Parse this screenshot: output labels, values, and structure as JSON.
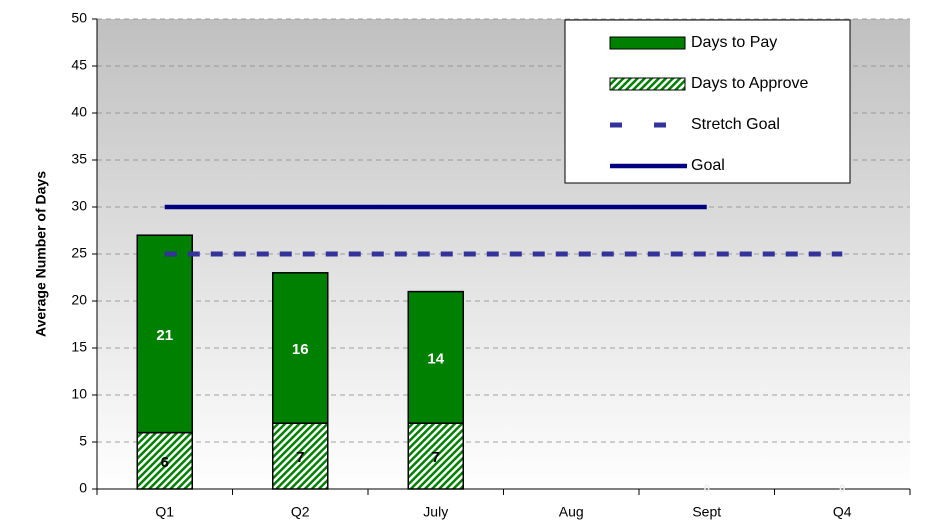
{
  "chart_data": {
    "type": "bar",
    "y_label": "Average Number of Days",
    "categories": [
      "Q1",
      "Q2",
      "July",
      "Aug",
      "Sept",
      "Q4"
    ],
    "series": [
      {
        "name": "Days to Pay",
        "type": "bar",
        "color": "#008000",
        "label_color": "#ffffff",
        "values": [
          21,
          16,
          14,
          null,
          null,
          null
        ]
      },
      {
        "name": "Days to Approve",
        "type": "bar",
        "color": "#008000",
        "pattern": "hatch",
        "label_color": "#000000",
        "values": [
          6,
          7,
          7,
          null,
          0,
          0
        ]
      },
      {
        "name": "Stretch Goal",
        "type": "line",
        "color": "#333399",
        "dashed": true,
        "values": [
          25,
          25,
          25,
          25,
          25,
          25
        ]
      },
      {
        "name": "Goal",
        "type": "line",
        "color": "#000080",
        "values": [
          30,
          30,
          30,
          30,
          30,
          null
        ]
      }
    ],
    "stack_order": [
      1,
      0
    ],
    "ylim": [
      0,
      50
    ],
    "yticks": [
      0,
      5,
      10,
      15,
      20,
      25,
      30,
      35,
      40,
      45,
      50
    ],
    "grid": true,
    "legend": "top-right"
  }
}
